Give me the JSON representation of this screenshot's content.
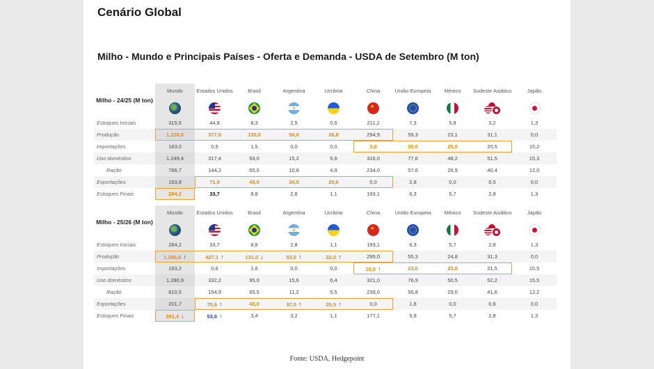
{
  "title": "Cenário Global",
  "subtitle": "Milho - Mundo e Principais Países - Oferta e Demanda - USDA de Setembro (M ton)",
  "columns": [
    "Mundo",
    "Estados Unidos",
    "Brasil",
    "Argentina",
    "Ucrânia",
    "China",
    "União Europeia",
    "México",
    "Sudeste Asiático",
    "Japão"
  ],
  "row_labels": [
    "Estoques Iniciais",
    "Produção",
    "Importações",
    "Uso doméstico",
    "Ração",
    "Exportações",
    "Estoques Finais"
  ],
  "tables": [
    {
      "year_label": "Milho - 24/25 (M ton)",
      "rows": [
        [
          "315,5",
          "44,8",
          "8,3",
          "2,5",
          "0,6",
          "211,2",
          "7,3",
          "5,8",
          "3,2",
          "1,3"
        ],
        [
          "1.228,0",
          "377,6",
          "135,0",
          "50,0",
          "26,8",
          "294,9",
          "59,3",
          "23,1",
          "31,1",
          "0,0"
        ],
        [
          "183,0",
          "0,5",
          "1,5",
          "0,0",
          "0,0",
          "3,0",
          "20,0",
          "25,0",
          "20,5",
          "15,2"
        ],
        [
          "1.249,4",
          "317,4",
          "93,0",
          "15,2",
          "5,8",
          "316,0",
          "77,6",
          "48,2",
          "51,5",
          "15,3"
        ],
        [
          "786,7",
          "144,2",
          "65,0",
          "10,8",
          "4,9",
          "234,0",
          "57,6",
          "26,9",
          "40,4",
          "12,0"
        ],
        [
          "193,8",
          "71,9",
          "43,0",
          "34,5",
          "20,6",
          "0,0",
          "2,8",
          "0,0",
          "0,5",
          "0,0"
        ],
        [
          "284,2",
          "33,7",
          "8,8",
          "2,8",
          "1,1",
          "193,1",
          "6,3",
          "5,7",
          "2,8",
          "1,3"
        ]
      ]
    },
    {
      "year_label": "Milho - 25/26 (M ton)",
      "rows": [
        [
          "284,2",
          "33,7",
          "8,8",
          "2,8",
          "1,1",
          "193,1",
          "6,3",
          "5,7",
          "2,8",
          "1,3"
        ],
        [
          "1.286,6",
          "427,1",
          "131,0",
          "53,0",
          "32,0",
          "295,0",
          "55,3",
          "24,8",
          "31,3",
          "0,0"
        ],
        [
          "193,2",
          "0,6",
          "1,6",
          "0,0",
          "0,0",
          "10,0",
          "23,0",
          "25,8",
          "21,5",
          "15,5"
        ],
        [
          "1.280,9",
          "332,2",
          "95,0",
          "15,6",
          "6,4",
          "321,0",
          "76,9",
          "50,5",
          "52,2",
          "15,5"
        ],
        [
          "810,5",
          "154,9",
          "65,5",
          "11,2",
          "5,5",
          "239,0",
          "56,8",
          "29,0",
          "41,6",
          "12,2"
        ],
        [
          "201,7",
          "75,6",
          "43,0",
          "37,0",
          "25,5",
          "0,0",
          "1,8",
          "0,0",
          "0,6",
          "0,0"
        ],
        [
          "281,4",
          "53,6",
          "3,4",
          "3,2",
          "1,1",
          "177,1",
          "5,9",
          "5,7",
          "2,8",
          "1,3"
        ]
      ]
    }
  ],
  "highlight_colors": {
    "orange": "#f08a00",
    "blue": "#2b3fb0",
    "red": "#d62020",
    "box": "#f0a030"
  },
  "arrow_icons": {
    "up": "↑",
    "down": "↓"
  },
  "source": "Fonte: USDA, Hedgepoint"
}
